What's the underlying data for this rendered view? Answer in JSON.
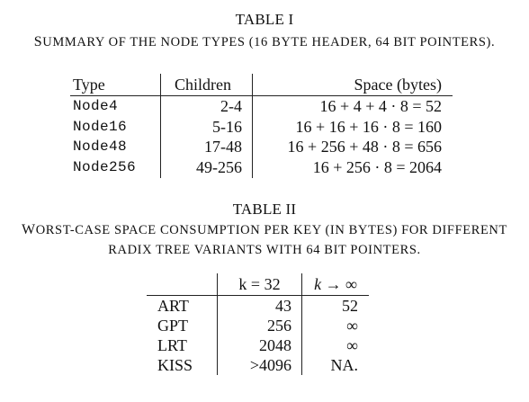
{
  "table1": {
    "label": "TABLE I",
    "caption_first": "S",
    "caption_rest": "UMMARY OF THE NODE TYPES (16 BYTE HEADER, 64 BIT POINTERS).",
    "headers": [
      "Type",
      "Children",
      "Space (bytes)"
    ],
    "rows": [
      {
        "type": "Node4",
        "children": "2-4",
        "space": "16 + 4 + 4 · 8 = 52"
      },
      {
        "type": "Node16",
        "children": "5-16",
        "space": "16 + 16 + 16 · 8 = 160"
      },
      {
        "type": "Node48",
        "children": "17-48",
        "space": "16 + 256 + 48 · 8 = 656"
      },
      {
        "type": "Node256",
        "children": "49-256",
        "space": "16 + 256 · 8 = 2064"
      }
    ]
  },
  "table2": {
    "label": "TABLE II",
    "caption_line1_first": "W",
    "caption_line1_rest": "ORST-CASE SPACE CONSUMPTION PER KEY (IN BYTES) FOR DIFFERENT",
    "caption_line2": "RADIX TREE VARIANTS WITH 64 BIT POINTERS.",
    "headers": [
      "",
      "k = 32",
      "k → ∞"
    ],
    "rows": [
      {
        "name": "ART",
        "k32": "43",
        "kinf": "52"
      },
      {
        "name": "GPT",
        "k32": "256",
        "kinf": "∞"
      },
      {
        "name": "LRT",
        "k32": "2048",
        "kinf": "∞"
      },
      {
        "name": "KISS",
        "k32": ">4096",
        "kinf": "NA."
      }
    ]
  }
}
